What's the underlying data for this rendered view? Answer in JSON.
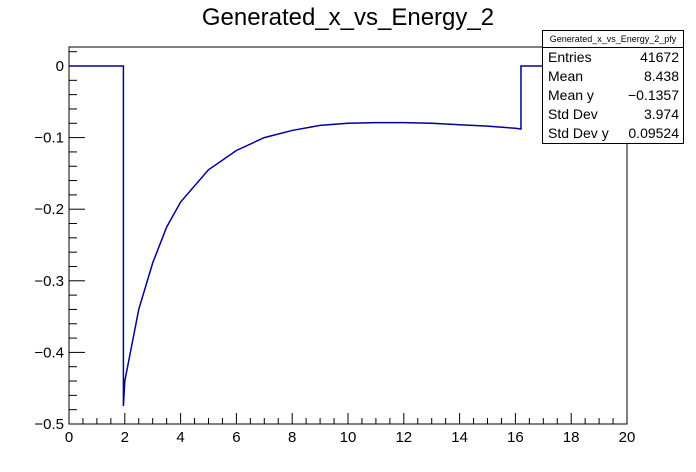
{
  "chart_data": {
    "type": "line",
    "title": "Generated_x_vs_Energy_2",
    "xlabel": "",
    "ylabel": "",
    "xlim": [
      0,
      20
    ],
    "ylim": [
      -0.5,
      0.025
    ],
    "xticks": [
      "0",
      "2",
      "4",
      "6",
      "8",
      "10",
      "12",
      "14",
      "16",
      "18",
      "20"
    ],
    "yticks": [
      "0",
      "−0.1",
      "−0.2",
      "−0.3",
      "−0.4",
      "−0.5"
    ],
    "series": [
      {
        "name": "Generated_x_vs_Energy_2_pfy",
        "color": "#000099",
        "x": [
          0,
          1.95,
          1.95,
          2.0,
          2.5,
          3,
          3.5,
          4,
          5,
          6,
          7,
          8,
          9,
          10,
          11,
          12,
          13,
          14,
          15,
          16,
          16.2,
          16.2,
          20
        ],
        "y": [
          0,
          0,
          -0.475,
          -0.44,
          -0.34,
          -0.275,
          -0.225,
          -0.19,
          -0.145,
          -0.118,
          -0.1,
          -0.09,
          -0.083,
          -0.08,
          -0.079,
          -0.079,
          -0.08,
          -0.082,
          -0.084,
          -0.087,
          -0.088,
          0,
          0
        ]
      }
    ]
  },
  "stats": {
    "name": "Generated_x_vs_Energy_2_pfy",
    "rows": [
      {
        "label": "Entries",
        "value": "41672"
      },
      {
        "label": "Mean",
        "value": "8.438"
      },
      {
        "label": "Mean y",
        "value": "−0.1357"
      },
      {
        "label": "Std Dev",
        "value": "3.974"
      },
      {
        "label": "Std Dev y",
        "value": "0.09524"
      }
    ]
  }
}
